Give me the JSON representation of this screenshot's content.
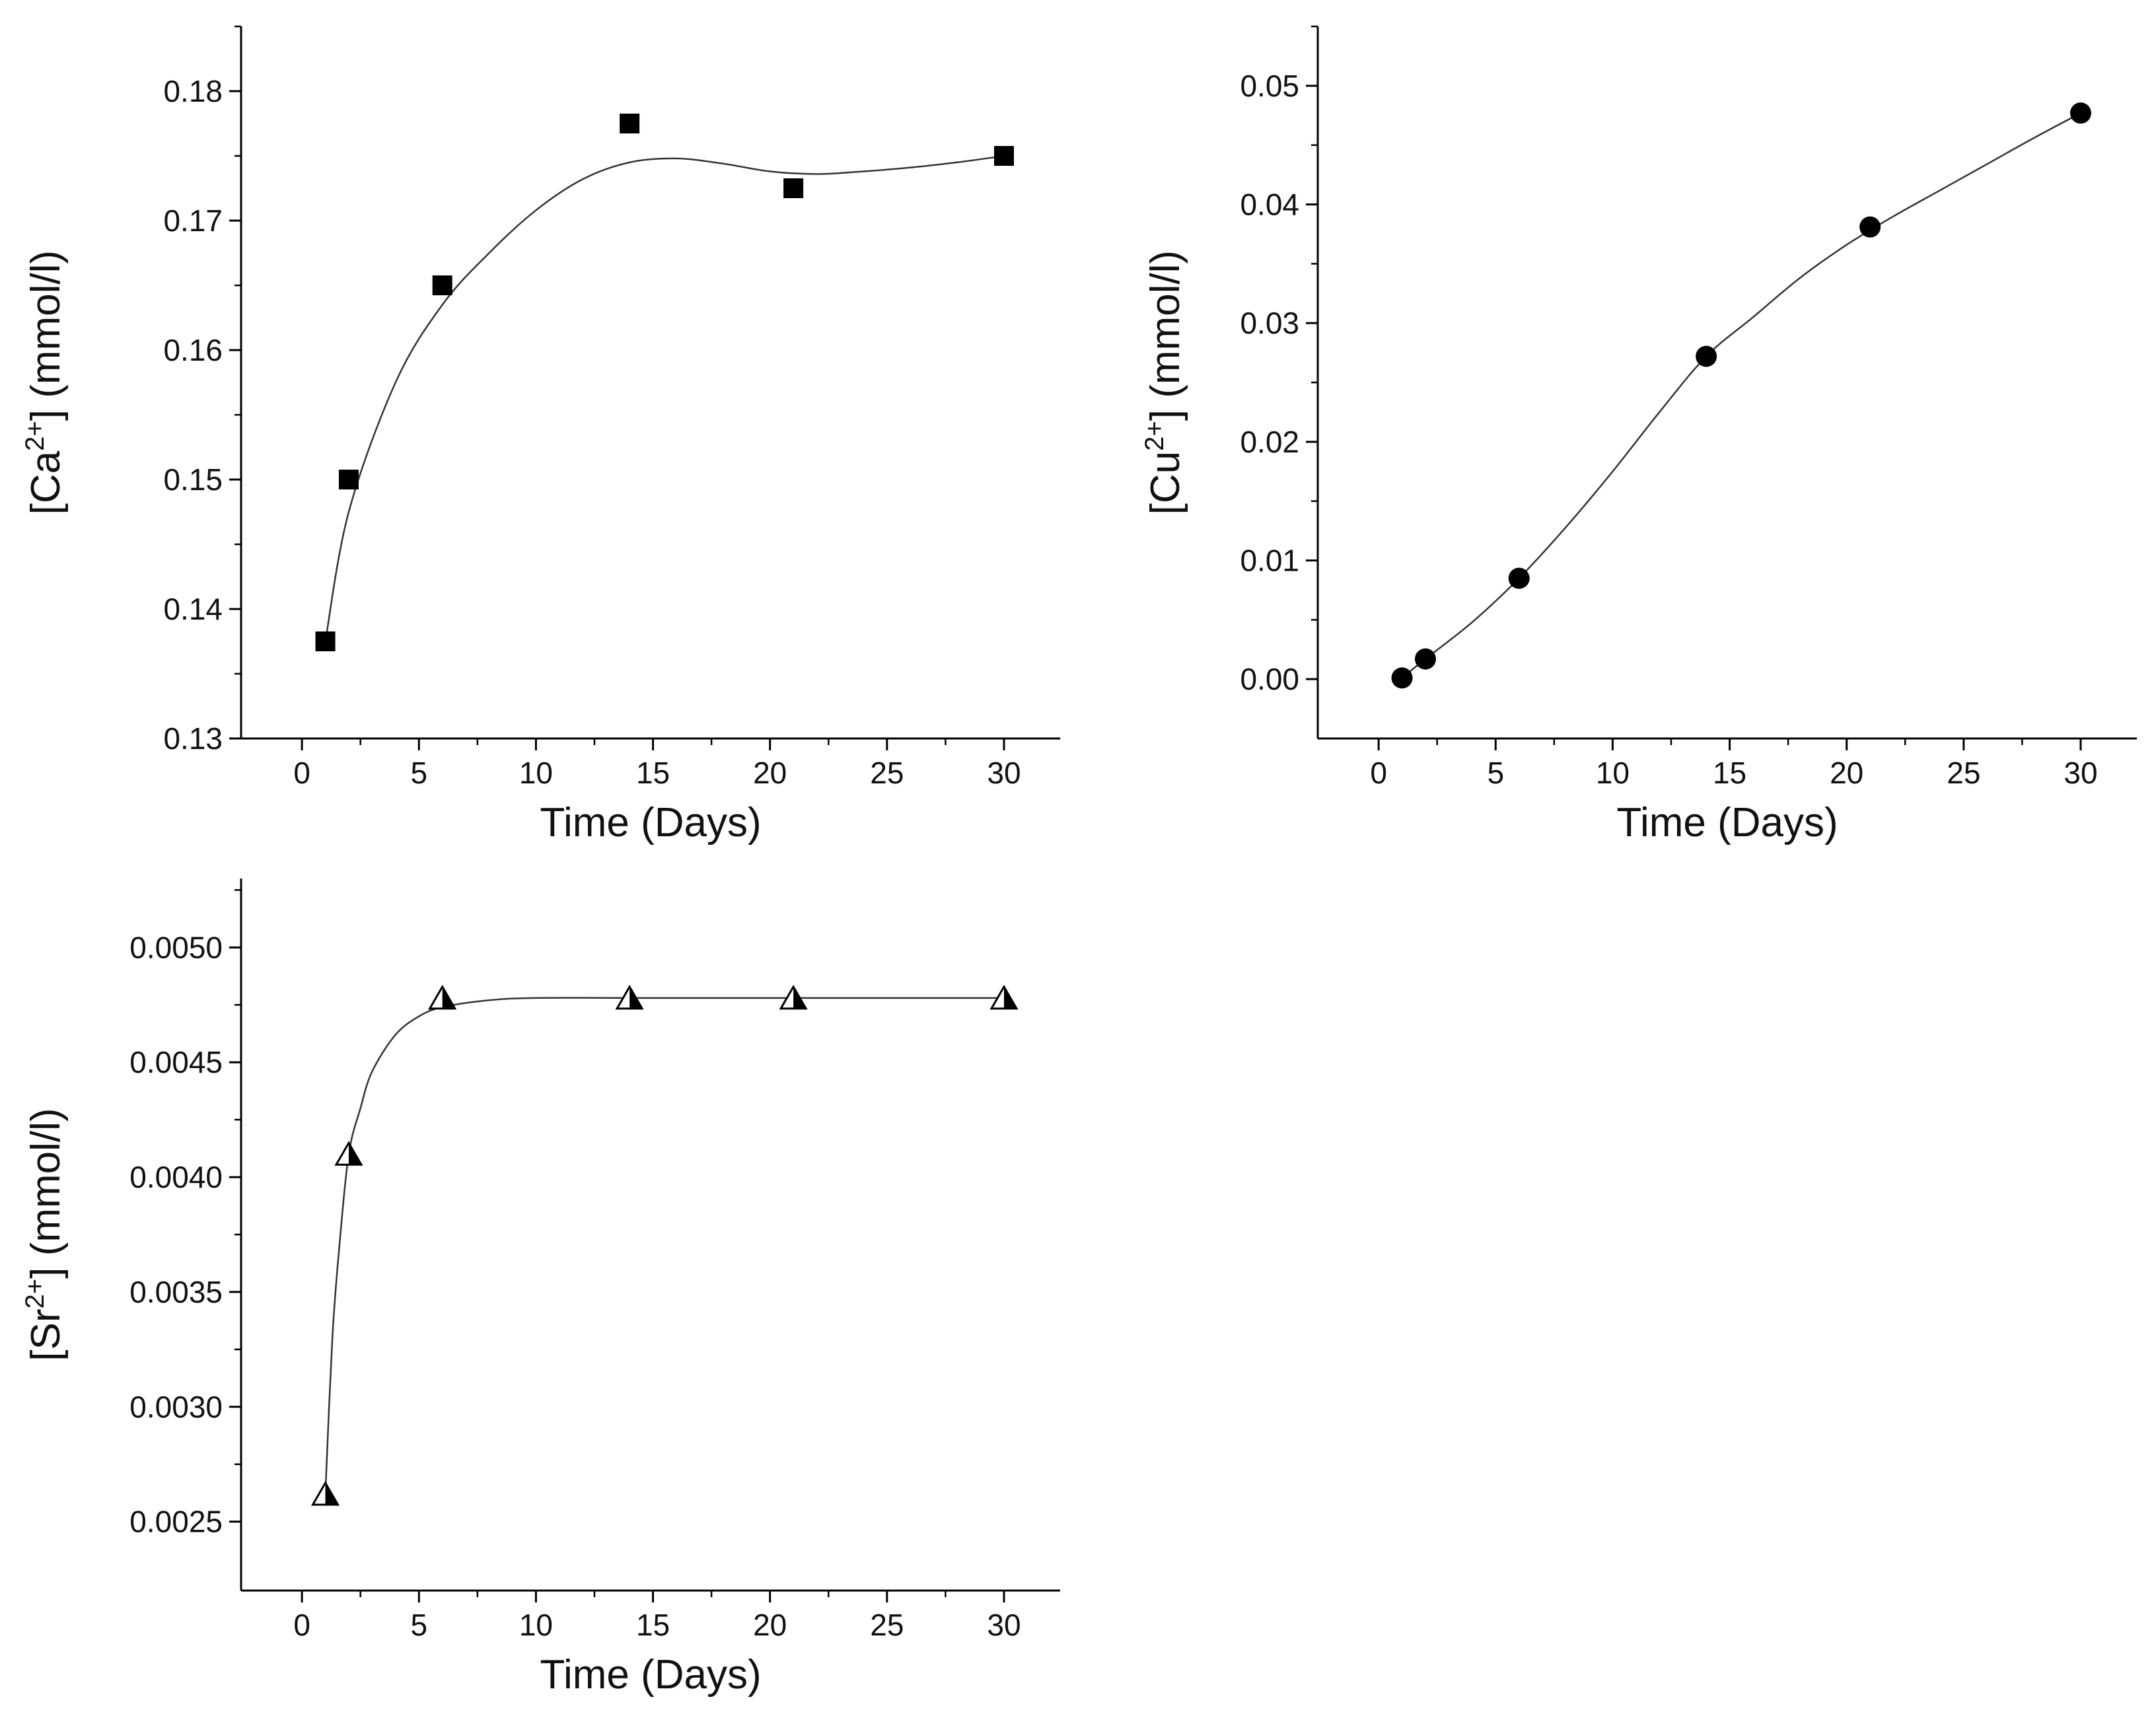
{
  "colors": {
    "marker": "#000000",
    "line": "#333333",
    "axis": "#000000",
    "background": "#ffffff"
  },
  "chart_data": [
    {
      "id": "ca",
      "type": "scatter",
      "marker": "square",
      "series": [
        {
          "name": "Ca",
          "x": [
            1,
            2,
            6,
            14,
            21,
            30
          ],
          "y": [
            0.1375,
            0.15,
            0.165,
            0.1775,
            0.1725,
            0.175
          ]
        }
      ],
      "fit_curve": {
        "x": [
          1,
          2,
          4,
          6,
          8,
          10,
          12,
          14,
          16,
          18,
          20,
          22,
          24,
          26,
          28,
          30
        ],
        "y": [
          0.1375,
          0.1475,
          0.1575,
          0.1635,
          0.1675,
          0.1708,
          0.1732,
          0.1745,
          0.1748,
          0.1744,
          0.1738,
          0.1736,
          0.1738,
          0.1741,
          0.1745,
          0.175
        ]
      },
      "xlabel": "Time (Days)",
      "ylabel_prefix": "[Ca",
      "ylabel_sup": "2+",
      "ylabel_suffix": "] (mmol/l)",
      "xlim": [
        -2.6,
        32.4
      ],
      "ylim": [
        0.13,
        0.185
      ],
      "xticks": [
        0,
        5,
        10,
        15,
        20,
        25,
        30
      ],
      "xtick_labels": [
        "0",
        "5",
        "10",
        "15",
        "20",
        "25",
        "30"
      ],
      "yticks": [
        0.13,
        0.14,
        0.15,
        0.16,
        0.17,
        0.18
      ],
      "ytick_labels": [
        "0.13",
        "0.14",
        "0.15",
        "0.16",
        "0.17",
        "0.18"
      ]
    },
    {
      "id": "cu",
      "type": "scatter",
      "marker": "circle",
      "series": [
        {
          "name": "Cu",
          "x": [
            1,
            2,
            6,
            14,
            21,
            30
          ],
          "y": [
            0.0001,
            0.0017,
            0.0085,
            0.0272,
            0.0381,
            0.0477
          ]
        }
      ],
      "fit_curve": {
        "x": [
          1,
          2,
          4,
          6,
          8,
          10,
          12,
          14,
          16,
          18,
          20,
          22,
          24,
          26,
          28,
          30
        ],
        "y": [
          0.0001,
          0.0017,
          0.0048,
          0.0085,
          0.0128,
          0.0175,
          0.0225,
          0.0272,
          0.0305,
          0.0338,
          0.0366,
          0.039,
          0.0412,
          0.0434,
          0.0456,
          0.0477
        ]
      },
      "xlabel": "Time (Days)",
      "ylabel_prefix": "[Cu",
      "ylabel_sup": "2+",
      "ylabel_suffix": "] (mmol/l)",
      "xlim": [
        -2.6,
        32.4
      ],
      "ylim": [
        -0.005,
        0.055
      ],
      "xticks": [
        0,
        5,
        10,
        15,
        20,
        25,
        30
      ],
      "xtick_labels": [
        "0",
        "5",
        "10",
        "15",
        "20",
        "25",
        "30"
      ],
      "yticks": [
        0.0,
        0.01,
        0.02,
        0.03,
        0.04,
        0.05
      ],
      "ytick_labels": [
        "0.00",
        "0.01",
        "0.02",
        "0.03",
        "0.04",
        "0.05"
      ]
    },
    {
      "id": "sr",
      "type": "scatter",
      "marker": "half-triangle",
      "series": [
        {
          "name": "Sr",
          "x": [
            1,
            2,
            6,
            14,
            21,
            30
          ],
          "y": [
            0.00262,
            0.0041,
            0.00478,
            0.00478,
            0.00478,
            0.00478
          ]
        }
      ],
      "fit_curve": {
        "x": [
          1,
          1.3,
          1.6,
          2,
          2.5,
          3,
          4,
          5,
          6,
          8,
          10,
          14,
          21,
          30
        ],
        "y": [
          0.00262,
          0.0033,
          0.0037,
          0.0041,
          0.0043,
          0.00446,
          0.00462,
          0.0047,
          0.00474,
          0.00477,
          0.00478,
          0.00478,
          0.00478,
          0.00478
        ]
      },
      "xlabel": "Time (Days)",
      "ylabel_prefix": "[Sr",
      "ylabel_sup": "2+",
      "ylabel_suffix": "] (mmol/l)",
      "xlim": [
        -2.6,
        32.4
      ],
      "ylim": [
        0.0022,
        0.0053
      ],
      "xticks": [
        0,
        5,
        10,
        15,
        20,
        25,
        30
      ],
      "xtick_labels": [
        "0",
        "5",
        "10",
        "15",
        "20",
        "25",
        "30"
      ],
      "yticks": [
        0.0025,
        0.003,
        0.0035,
        0.004,
        0.0045,
        0.005
      ],
      "ytick_labels": [
        "0.0025",
        "0.0030",
        "0.0035",
        "0.0040",
        "0.0045",
        "0.0050"
      ]
    }
  ]
}
